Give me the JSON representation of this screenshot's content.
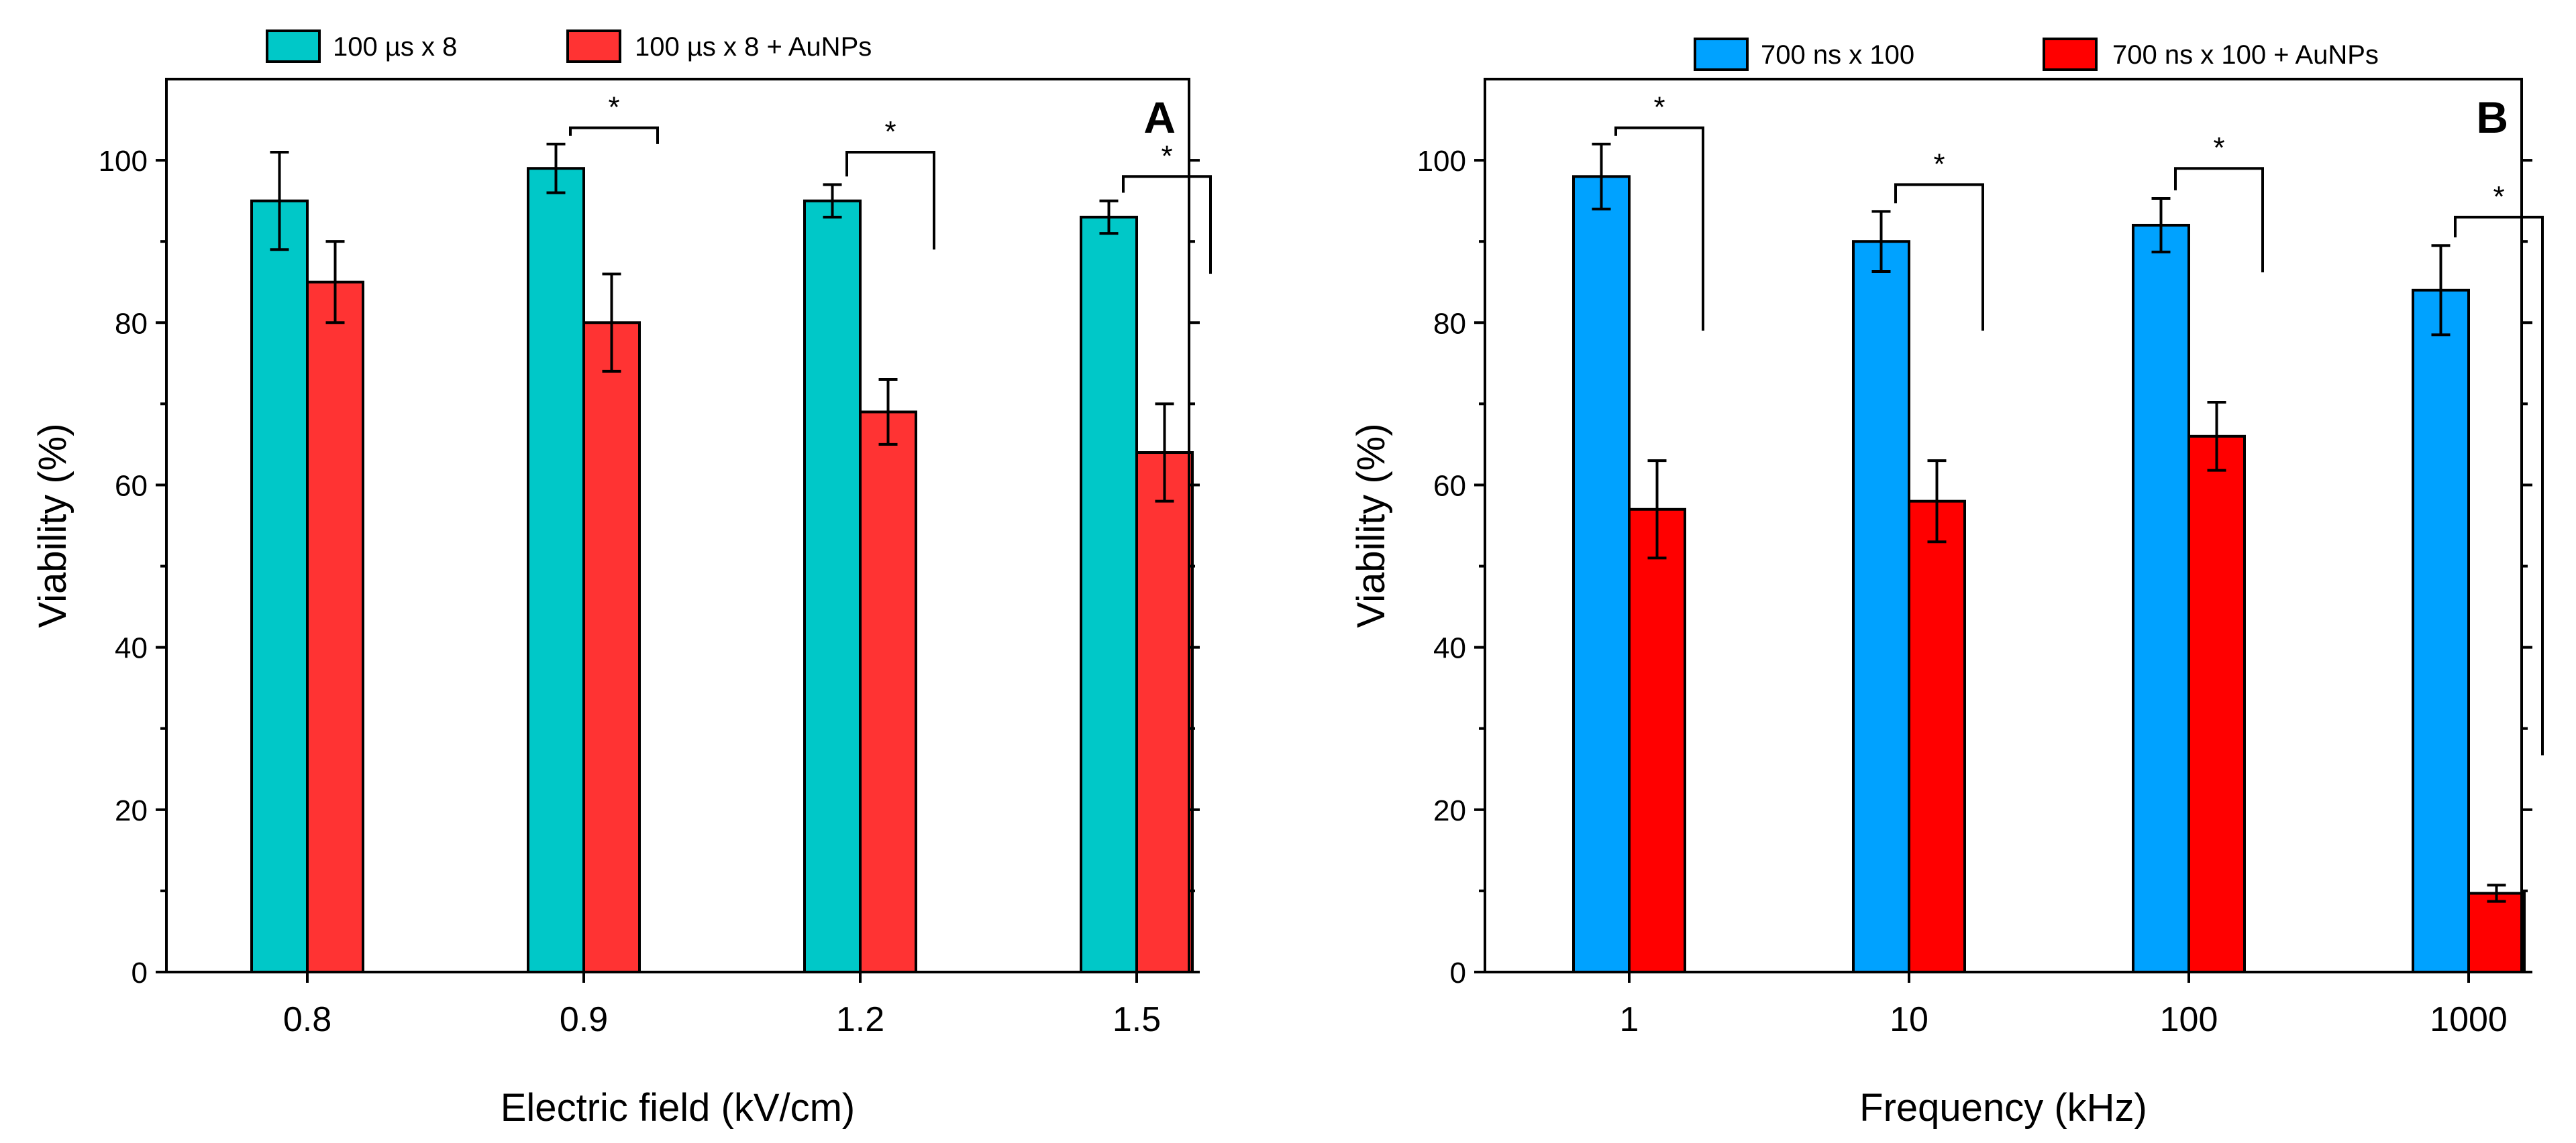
{
  "chart_data": [
    {
      "type": "bar",
      "panel_label": "A",
      "categories": [
        "0.8",
        "0.9",
        "1.2",
        "1.5"
      ],
      "xlabel": "Electric field (kV/cm)",
      "ylabel": "Viability (%)",
      "ylim": [
        0,
        110
      ],
      "yticks": [
        "0",
        "20",
        "40",
        "60",
        "80",
        "100"
      ],
      "legend_position": "top",
      "series": [
        {
          "name": "100 µs x 8",
          "color": "#00C8C8",
          "values": [
            95,
            99,
            95,
            93
          ],
          "errors": [
            6,
            3,
            2,
            2
          ]
        },
        {
          "name": "100 µs x 8 + AuNPs",
          "color": "#FF3333",
          "values": [
            85,
            80,
            69,
            64
          ],
          "errors": [
            5,
            6,
            4,
            6
          ]
        }
      ],
      "significance": [
        {
          "category": "0.9",
          "label": "*",
          "top": 104
        },
        {
          "category": "1.2",
          "label": "*",
          "top": 101
        },
        {
          "category": "1.5",
          "label": "*",
          "top": 98
        }
      ]
    },
    {
      "type": "bar",
      "panel_label": "B",
      "categories": [
        "1",
        "10",
        "100",
        "1000"
      ],
      "xlabel": "Frequency (kHz)",
      "ylabel": "Viability (%)",
      "ylim": [
        0,
        110
      ],
      "yticks": [
        "0",
        "20",
        "40",
        "60",
        "80",
        "100"
      ],
      "legend_position": "top",
      "series": [
        {
          "name": "700 ns x 100",
          "color": "#00A2FF",
          "values": [
            98,
            90,
            92,
            84
          ],
          "errors": [
            4,
            3.7,
            3.3,
            5.5
          ]
        },
        {
          "name": "700 ns x 100 + AuNPs",
          "color": "#FF0000",
          "values": [
            57,
            58,
            66,
            9.7
          ],
          "errors": [
            6,
            5,
            4.2,
            1
          ]
        }
      ],
      "significance": [
        {
          "category": "1",
          "label": "*",
          "top": 104
        },
        {
          "category": "10",
          "label": "*",
          "top": 97
        },
        {
          "category": "100",
          "label": "*",
          "top": 99
        },
        {
          "category": "1000",
          "label": "*",
          "top": 93
        }
      ]
    }
  ]
}
